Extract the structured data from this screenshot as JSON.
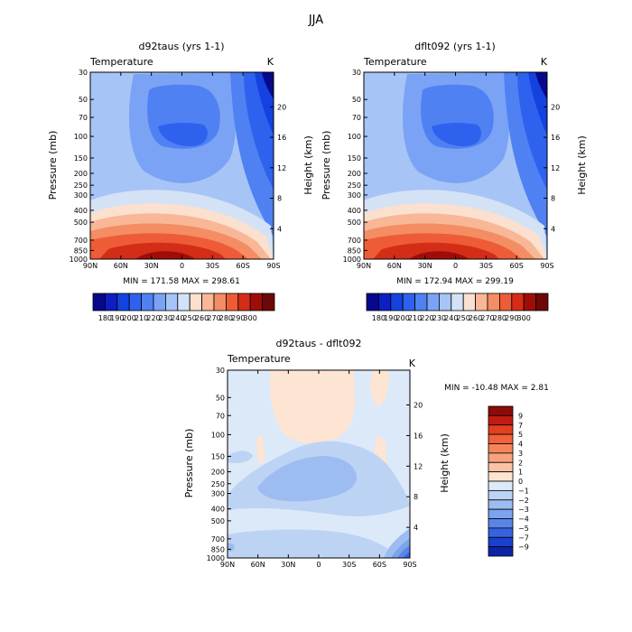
{
  "page_title": "JJA",
  "chart_data": [
    {
      "type": "contour",
      "panel": "left",
      "title": "d92taus (yrs 1-1)",
      "variable": "Temperature",
      "units": "K",
      "ylabel": "Pressure (mb)",
      "ylabel_right": "Height (km)",
      "x_ticks": [
        "90N",
        "60N",
        "30N",
        "0",
        "30S",
        "60S",
        "90S"
      ],
      "pressure_ticks": [
        30,
        50,
        70,
        100,
        150,
        200,
        250,
        300,
        400,
        500,
        700,
        850,
        1000
      ],
      "height_ticks": [
        4,
        8,
        12,
        16,
        20
      ],
      "stats": "MIN = 171.58   MAX = 298.61",
      "colorbar_labels": [
        "180",
        "190",
        "200",
        "210",
        "220",
        "230",
        "240",
        "250",
        "260",
        "270",
        "280",
        "290",
        "300"
      ],
      "colorbar_colors": [
        "#08088c",
        "#0b1fc4",
        "#1442e0",
        "#2e62ee",
        "#4f81f3",
        "#7aa3f6",
        "#a7c4f7",
        "#d4e2f6",
        "#fbe0d0",
        "#f8b796",
        "#f48d63",
        "#ee5c37",
        "#d32d17",
        "#a00d09",
        "#6e0707"
      ]
    },
    {
      "type": "contour",
      "panel": "right",
      "title": "dflt092 (yrs 1-1)",
      "variable": "Temperature",
      "units": "K",
      "ylabel": "Pressure (mb)",
      "ylabel_right": "Height (km)",
      "x_ticks": [
        "90N",
        "60N",
        "30N",
        "0",
        "30S",
        "60S",
        "90S"
      ],
      "pressure_ticks": [
        30,
        50,
        70,
        100,
        150,
        200,
        250,
        300,
        400,
        500,
        700,
        850,
        1000
      ],
      "height_ticks": [
        4,
        8,
        12,
        16,
        20
      ],
      "stats": "MIN = 172.94   MAX = 299.19",
      "colorbar_labels": [
        "180",
        "190",
        "200",
        "210",
        "220",
        "230",
        "240",
        "250",
        "260",
        "270",
        "280",
        "290",
        "300"
      ],
      "colorbar_colors": [
        "#08088c",
        "#0b1fc4",
        "#1442e0",
        "#2e62ee",
        "#4f81f3",
        "#7aa3f6",
        "#a7c4f7",
        "#d4e2f6",
        "#fbe0d0",
        "#f8b796",
        "#f48d63",
        "#ee5c37",
        "#d32d17",
        "#a00d09",
        "#6e0707"
      ]
    },
    {
      "type": "contour",
      "panel": "difference",
      "title": "d92taus - dflt092",
      "variable": "Temperature",
      "units": "K",
      "ylabel": "Pressure (mb)",
      "ylabel_right": "Height (km)",
      "x_ticks": [
        "90N",
        "60N",
        "30N",
        "0",
        "30S",
        "60S",
        "90S"
      ],
      "pressure_ticks": [
        30,
        50,
        70,
        100,
        150,
        200,
        250,
        300,
        400,
        500,
        700,
        850,
        1000
      ],
      "height_ticks": [
        4,
        8,
        12,
        16,
        20
      ],
      "stats": "MIN = -10.48   MAX =    2.81",
      "colorbar_labels": [
        "9",
        "7",
        "5",
        "4",
        "3",
        "2",
        "1",
        "0",
        "−1",
        "−2",
        "−3",
        "−4",
        "−5",
        "−7",
        "−9"
      ],
      "colorbar_colors": [
        "#8c0a0a",
        "#c21b12",
        "#e3401f",
        "#f0623a",
        "#f58558",
        "#f8a37e",
        "#fbc3a6",
        "#fde4d3",
        "#dce9f8",
        "#bcd3f4",
        "#9dbcf1",
        "#7ca3ee",
        "#5a85e8",
        "#3863e0",
        "#1a40cf",
        "#0d23a6"
      ]
    }
  ]
}
